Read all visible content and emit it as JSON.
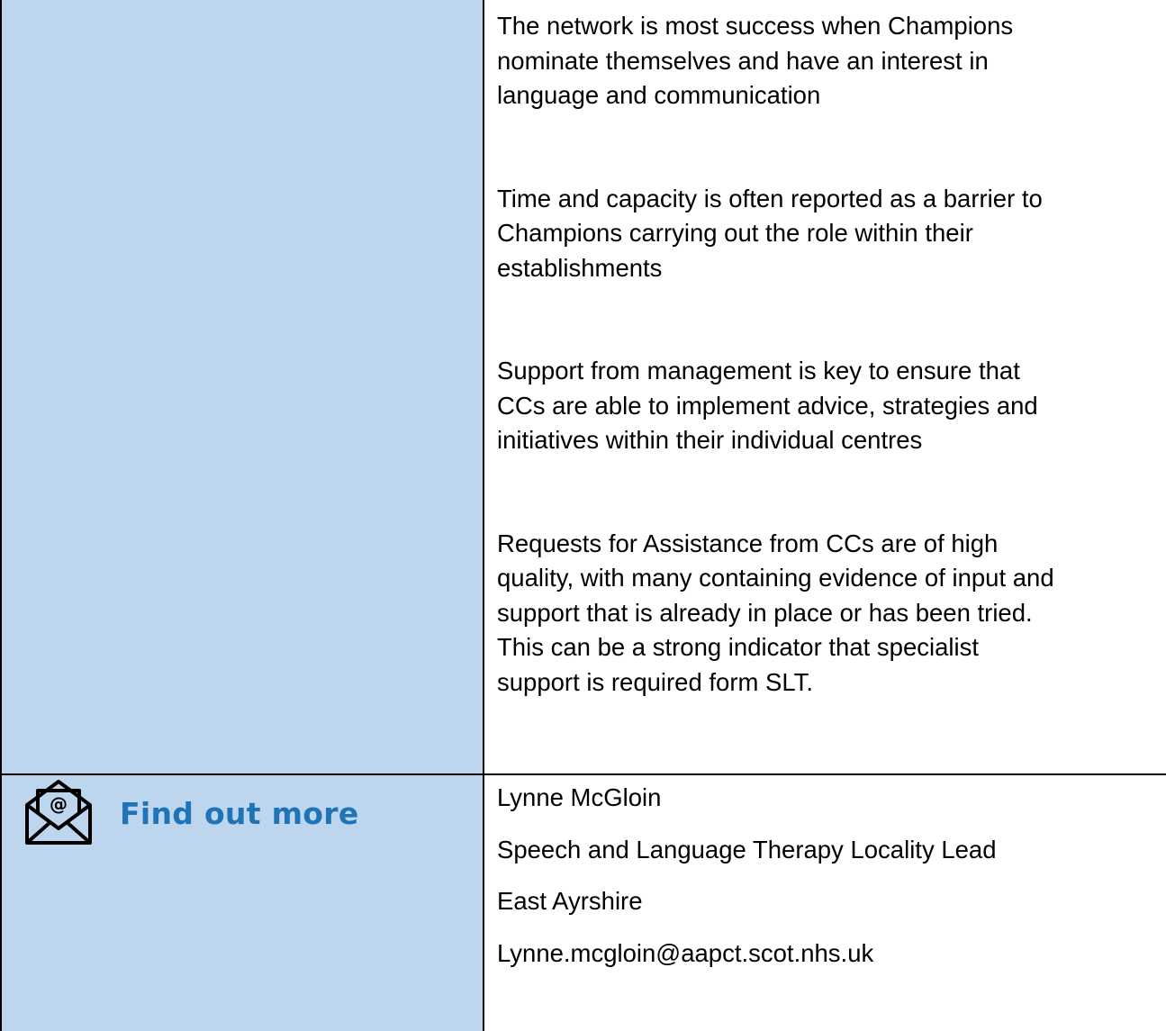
{
  "table": {
    "rows": [
      {
        "cells": [
          null,
          {
            "paragraphs": [
              [
                "The network is most success when Champions",
                "nominate themselves and have an interest in",
                "language and communication"
              ],
              [
                "Time and capacity is often reported as a barrier to",
                "Champions carrying out the role within their",
                "establishments"
              ],
              [
                "Support from management is key to ensure that",
                "CCs are able to implement advice, strategies and",
                "initiatives within their individual centres"
              ],
              [
                "Requests for Assistance from CCs are of high",
                "quality, with many containing evidence of input and",
                "support that is already in place or has been tried.",
                "This can be a strong indicator that specialist",
                "support is required form SLT."
              ]
            ]
          }
        ]
      },
      {
        "cells": [
          {
            "heading": "Find out more"
          },
          {
            "lines": [
              "Lynne McGloin",
              "Speech and Language Therapy Locality Lead",
              "East Ayrshire",
              "Lynne.mcgloin@aapct.scot.nhs.uk"
            ]
          }
        ]
      }
    ]
  }
}
